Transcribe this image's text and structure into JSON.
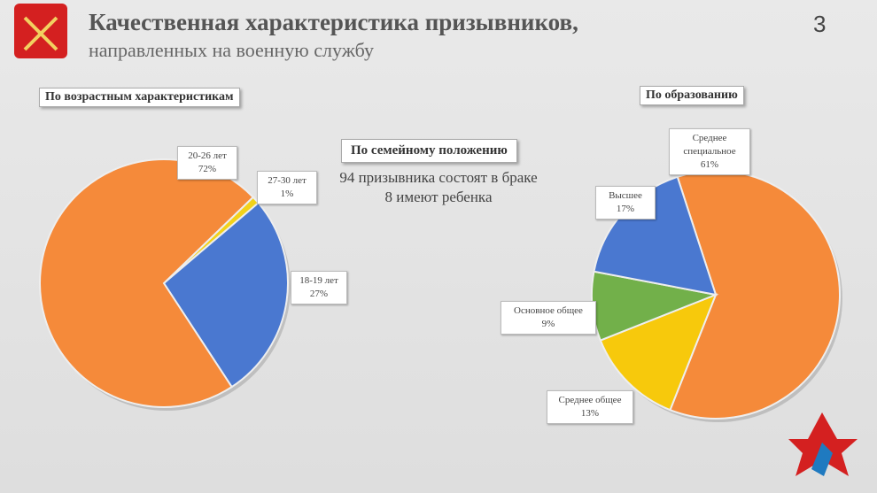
{
  "header": {
    "title": "Качественная характеристика призывников,",
    "subtitle": "направленных на военную службу",
    "page_number": "3"
  },
  "family": {
    "title": "По семейному положению",
    "lines": [
      "94 призывника состоят в браке",
      "8 имеют ребенка"
    ]
  },
  "chart_data": [
    {
      "type": "pie",
      "title": "По возрастным характеристикам",
      "categories": [
        "27-30 лет",
        "18-19 лет",
        "20-26 лет"
      ],
      "values": [
        1,
        27,
        72
      ],
      "value_labels": [
        "1%",
        "27%",
        "72%"
      ],
      "colors": [
        "#f2d21a",
        "#4a78d0",
        "#f58a3a"
      ]
    },
    {
      "type": "pie",
      "title": "По образованию",
      "categories": [
        "Среднее специальное",
        "Среднее общее",
        "Основное общее",
        "Высшее"
      ],
      "values": [
        61,
        13,
        9,
        17
      ],
      "value_labels": [
        "61%",
        "13%",
        "9%",
        "17%"
      ],
      "colors": [
        "#f58a3a",
        "#f7c90c",
        "#72b04a",
        "#4a78d0"
      ]
    }
  ]
}
